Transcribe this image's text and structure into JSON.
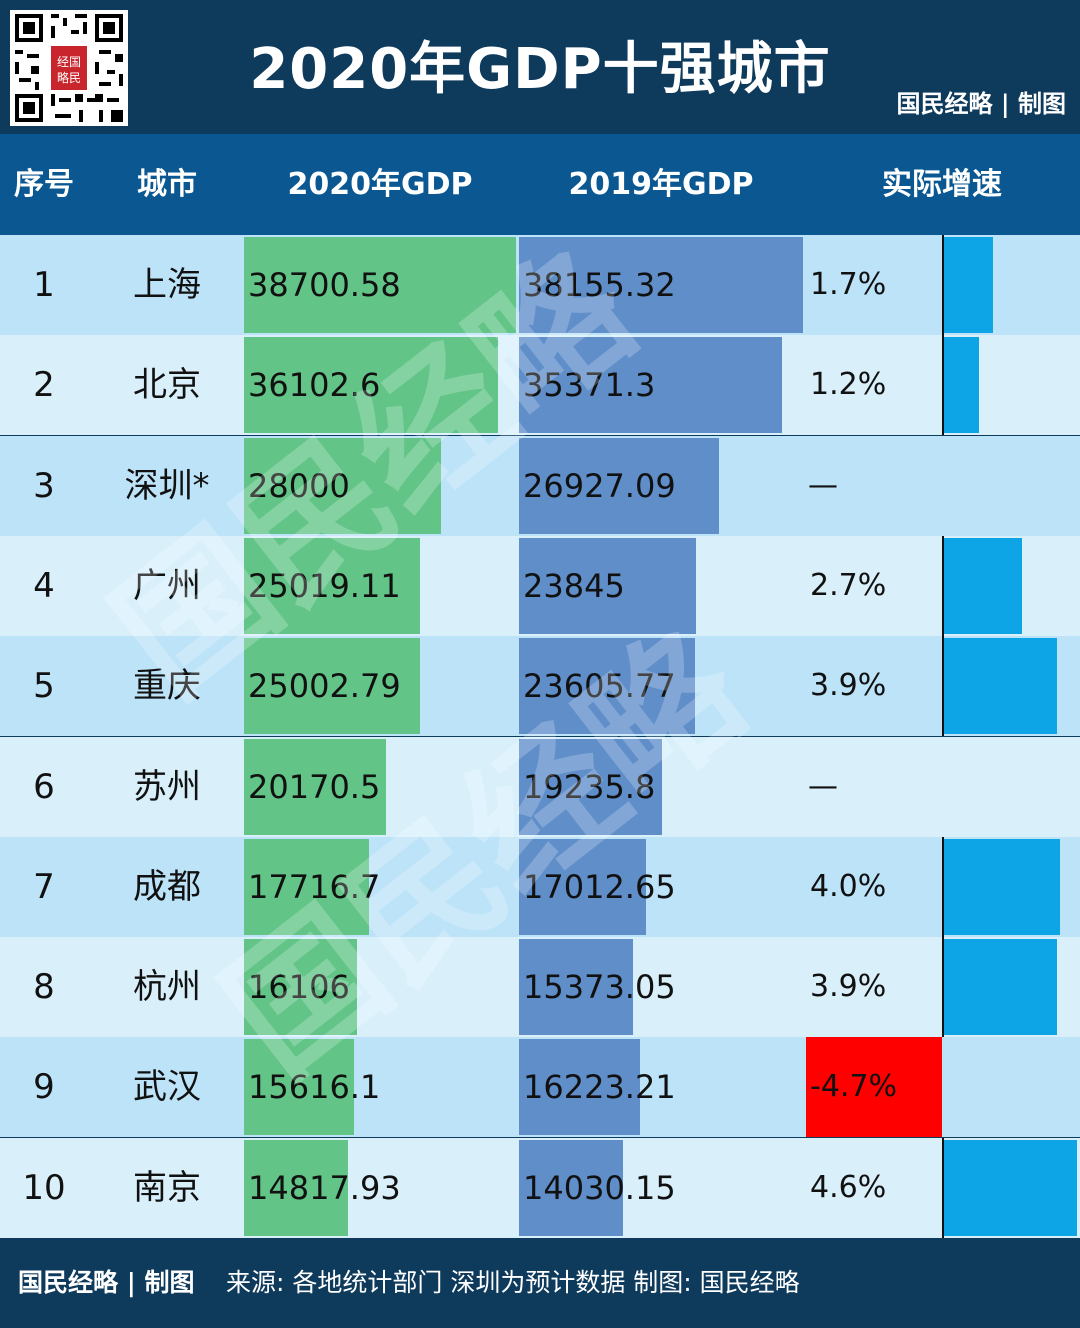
{
  "header": {
    "title": "2020年GDP十强城市",
    "brand": "国民经略 | 制图"
  },
  "columns": {
    "rank": "序号",
    "city": "城市",
    "gdp2020": "2020年GDP",
    "gdp2019": "2019年GDP",
    "growth": "实际增速"
  },
  "footer": {
    "brand": "国民经略 | 制图",
    "source": "来源: 各地统计部门 深圳为预计数据 制图: 国民经略"
  },
  "watermark": "国民经略",
  "colors": {
    "bar2020": "#62c487",
    "bar2019": "#5f8ec9",
    "growth_bar": "#0ea5e6",
    "negative": "#ff0000"
  },
  "chart_data": {
    "type": "table",
    "title": "2020年GDP十强城市",
    "rows": [
      {
        "rank": "1",
        "city": "上海",
        "gdp2020": "38700.58",
        "gdp2019": "38155.32",
        "growth": "1.7%",
        "growth_value": 1.7
      },
      {
        "rank": "2",
        "city": "北京",
        "gdp2020": "36102.6",
        "gdp2019": "35371.3",
        "growth": "1.2%",
        "growth_value": 1.2
      },
      {
        "rank": "3",
        "city": "深圳*",
        "gdp2020": "28000",
        "gdp2019": "26927.09",
        "growth": "—",
        "growth_value": null
      },
      {
        "rank": "4",
        "city": "广州",
        "gdp2020": "25019.11",
        "gdp2019": "23845",
        "growth": "2.7%",
        "growth_value": 2.7
      },
      {
        "rank": "5",
        "city": "重庆",
        "gdp2020": "25002.79",
        "gdp2019": "23605.77",
        "growth": "3.9%",
        "growth_value": 3.9
      },
      {
        "rank": "6",
        "city": "苏州",
        "gdp2020": "20170.5",
        "gdp2019": "19235.8",
        "growth": "—",
        "growth_value": null
      },
      {
        "rank": "7",
        "city": "成都",
        "gdp2020": "17716.7",
        "gdp2019": "17012.65",
        "growth": "4.0%",
        "growth_value": 4.0
      },
      {
        "rank": "8",
        "city": "杭州",
        "gdp2020": "16106",
        "gdp2019": "15373.05",
        "growth": "3.9%",
        "growth_value": 3.9
      },
      {
        "rank": "9",
        "city": "武汉",
        "gdp2020": "15616.1",
        "gdp2019": "16223.21",
        "growth": "-4.7%",
        "growth_value": -4.7
      },
      {
        "rank": "10",
        "city": "南京",
        "gdp2020": "14817.93",
        "gdp2019": "14030.15",
        "growth": "4.6%",
        "growth_value": 4.6
      }
    ]
  }
}
